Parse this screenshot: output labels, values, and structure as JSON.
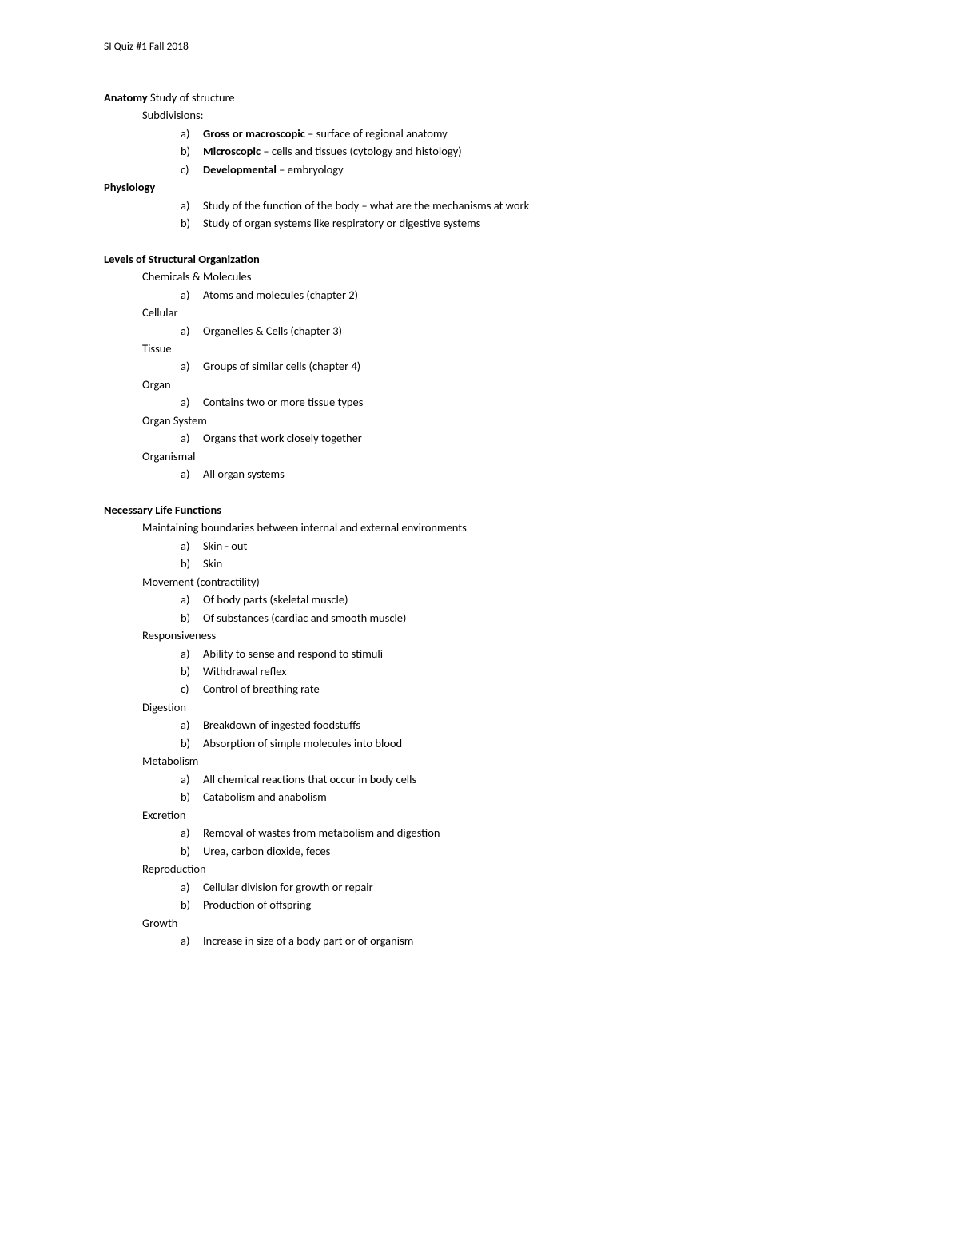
{
  "header": "SI Quiz #1 Fall 2018",
  "s1": {
    "anatomy_label": "Anatomy",
    "anatomy_desc": "  Study of structure",
    "subdivisions": "Subdivisions:",
    "a_marker": "a)",
    "a_bold": "Gross or macroscopic",
    "a_rest": " – surface of regional anatomy",
    "b_marker": "b)",
    "b_bold": "Microscopic",
    "b_rest": " – cells and tissues (cytology and histology)",
    "c_marker": "c)",
    "c_bold": "Developmental",
    "c_rest": " – embryology"
  },
  "s2": {
    "title": "Physiology",
    "a_marker": "a)",
    "a_text": "Study of the function of the body – what are the mechanisms at work",
    "b_marker": "b)",
    "b_text": "Study of organ systems like respiratory or digestive systems"
  },
  "s3": {
    "title": "Levels of Structural Organization",
    "g1": "Chemicals & Molecules",
    "g1a_m": "a)",
    "g1a": "Atoms and molecules (chapter 2)",
    "g2": "Cellular",
    "g2a_m": "a)",
    "g2a": "Organelles & Cells (chapter 3)",
    "g3": "Tissue",
    "g3a_m": "a)",
    "g3a": "Groups of similar cells (chapter 4)",
    "g4": "Organ",
    "g4a_m": "a)",
    "g4a": "Contains two or more tissue types",
    "g5": "Organ System",
    "g5a_m": "a)",
    "g5a": "Organs that work closely together",
    "g6": "Organismal",
    "g6a_m": "a)",
    "g6a": "All organ systems"
  },
  "s4": {
    "title": "Necessary Life Functions",
    "g1": "Maintaining boundaries between internal and external environments",
    "g1a_m": "a)",
    "g1a": "Skin - out",
    "g1b_m": "b)",
    "g1b": "Skin",
    "g2": "Movement (contractility)",
    "g2a_m": "a)",
    "g2a": "Of body parts (skeletal muscle)",
    "g2b_m": "b)",
    "g2b": "Of substances (cardiac and smooth muscle)",
    "g3": "Responsiveness",
    "g3a_m": "a)",
    "g3a": "Ability to sense and respond to stimuli",
    "g3b_m": "b)",
    "g3b": "Withdrawal reflex",
    "g3c_m": "c)",
    "g3c": "Control of breathing rate",
    "g4": "Digestion",
    "g4a_m": "a)",
    "g4a": "Breakdown of ingested foodstuffs",
    "g4b_m": "b)",
    "g4b": "Absorption of simple molecules into blood",
    "g5": "Metabolism",
    "g5a_m": "a)",
    "g5a": "All chemical reactions that occur in body cells",
    "g5b_m": "b)",
    "g5b": "Catabolism and anabolism",
    "g6": "Excretion",
    "g6a_m": "a)",
    "g6a": "Removal of wastes from metabolism and digestion",
    "g6b_m": "b)",
    "g6b": "Urea, carbon dioxide, feces",
    "g7": "Reproduction",
    "g7a_m": "a)",
    "g7a": "Cellular division for growth or repair",
    "g7b_m": "b)",
    "g7b": "Production of offspring",
    "g8": "Growth",
    "g8a_m": "a)",
    "g8a": "Increase in size of a body part or of organism"
  }
}
